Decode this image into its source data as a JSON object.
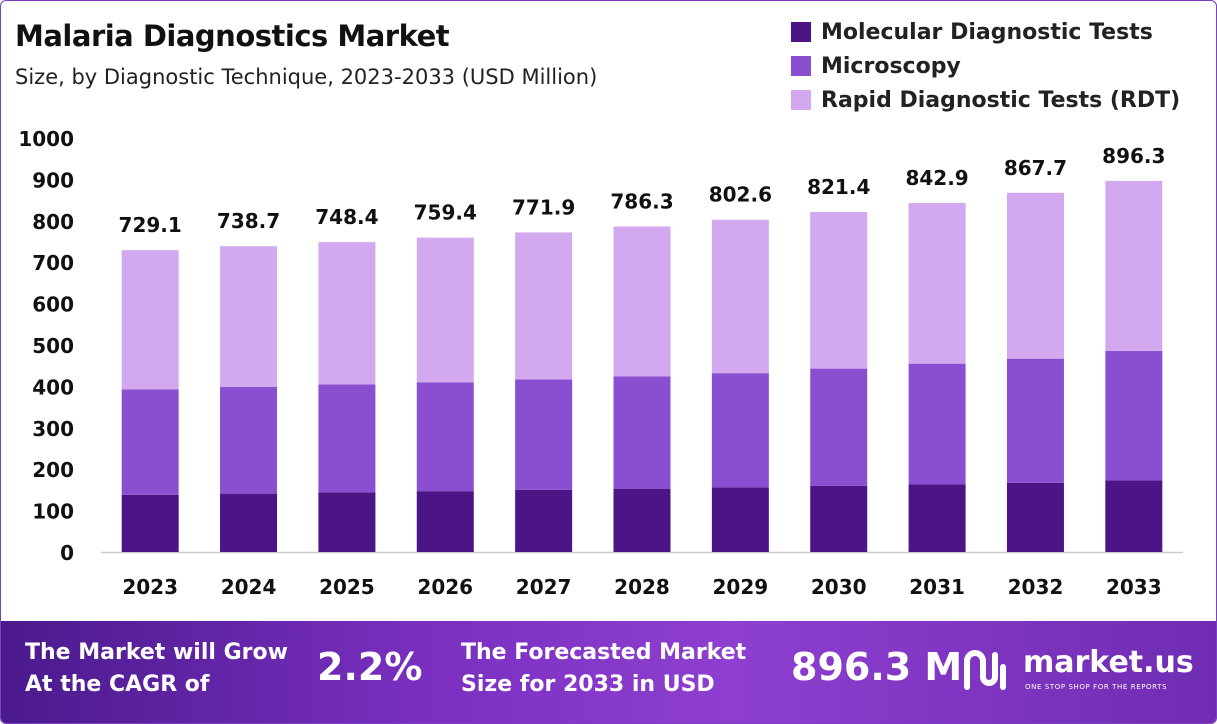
{
  "header": {
    "title": "Malaria Diagnostics Market",
    "subtitle": "Size, by Diagnostic Technique, 2023-2033 (USD Million)"
  },
  "legend": [
    {
      "label": "Molecular Diagnostic Tests",
      "color": "#4b1585"
    },
    {
      "label": "Microscopy",
      "color": "#8a4fd0"
    },
    {
      "label": "Rapid Diagnostic Tests (RDT)",
      "color": "#d2a9ee"
    }
  ],
  "chart_data": {
    "type": "bar",
    "stacked": true,
    "title": "Malaria Diagnostics Market",
    "subtitle": "Size, by Diagnostic Technique, 2023-2033 (USD Million)",
    "categories": [
      "2023",
      "2024",
      "2025",
      "2026",
      "2027",
      "2028",
      "2029",
      "2030",
      "2031",
      "2032",
      "2033"
    ],
    "series": [
      {
        "name": "Molecular Diagnostic Tests",
        "color": "#4b1585",
        "values": [
          138,
          141,
          144,
          147,
          150,
          153,
          156,
          160,
          163,
          167,
          173
        ]
      },
      {
        "name": "Microscopy",
        "color": "#8a4fd0",
        "values": [
          255,
          258,
          261,
          263,
          267,
          271,
          276,
          283,
          292,
          300,
          313
        ]
      },
      {
        "name": "Rapid Diagnostic Tests (RDT)",
        "color": "#d2a9ee",
        "values": [
          336.1,
          339.7,
          343.4,
          349.4,
          354.9,
          362.3,
          370.6,
          378.4,
          387.9,
          400.7,
          410.3
        ]
      }
    ],
    "totals": [
      "729.1",
      "738.7",
      "748.4",
      "759.4",
      "771.9",
      "786.3",
      "802.6",
      "821.4",
      "842.9",
      "867.7",
      "896.3"
    ],
    "yticks": [
      0,
      100,
      200,
      300,
      400,
      500,
      600,
      700,
      800,
      900,
      1000
    ],
    "ylim": [
      0,
      1000
    ],
    "grid": false,
    "legend_position": "top-right"
  },
  "footer": {
    "cagr_label_line1": "The Market will Grow",
    "cagr_label_line2": "At the CAGR of",
    "cagr_value": "2.2%",
    "forecast_label_line1": "The Forecasted Market",
    "forecast_label_line2": "Size for 2033 in USD",
    "forecast_value": "896.3 M",
    "logo_name": "market.us",
    "logo_tagline": "ONE STOP SHOP FOR THE REPORTS"
  }
}
